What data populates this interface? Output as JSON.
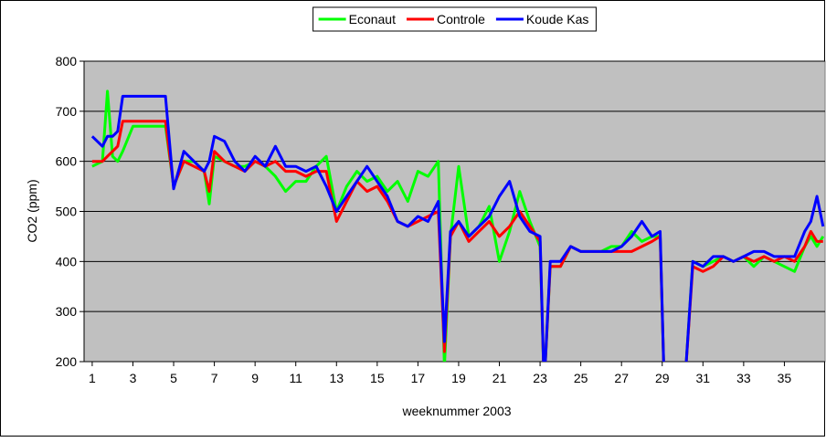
{
  "chart_data": {
    "type": "line",
    "xlabel": "weeknummer 2003",
    "ylabel": "CO2 (ppm)",
    "x": [
      1,
      1.5,
      1.75,
      2,
      2.25,
      2.5,
      3,
      4,
      4.6,
      5,
      5.5,
      6,
      6.5,
      6.75,
      7,
      7.5,
      8,
      8.5,
      9,
      9.5,
      10,
      10.5,
      11,
      11.5,
      12,
      12.5,
      13,
      13.5,
      14,
      14.5,
      15,
      15.5,
      16,
      16.5,
      17,
      17.5,
      18,
      18.3,
      18.6,
      19,
      19.5,
      20,
      20.5,
      21,
      21.5,
      22,
      22.5,
      23,
      23.2,
      23.5,
      24,
      24.5,
      25,
      25.5,
      26,
      26.5,
      27,
      27.5,
      28,
      28.5,
      28.9,
      29.1,
      30,
      30.1,
      30.5,
      31,
      31.5,
      32,
      32.5,
      33,
      33.5,
      34,
      34.5,
      35,
      35.5,
      36,
      36.3,
      36.6,
      36.9
    ],
    "series": [
      {
        "name": "Econaut",
        "color": "#00ff00",
        "values": [
          590,
          600,
          740,
          610,
          600,
          620,
          670,
          670,
          670,
          550,
          600,
          600,
          580,
          515,
          610,
          600,
          590,
          590,
          600,
          590,
          570,
          540,
          560,
          560,
          590,
          610,
          500,
          550,
          580,
          560,
          570,
          540,
          560,
          520,
          580,
          570,
          600,
          190,
          450,
          590,
          450,
          470,
          510,
          400,
          460,
          540,
          480,
          430,
          150,
          390,
          390,
          430,
          420,
          420,
          420,
          430,
          430,
          460,
          440,
          450,
          450,
          150,
          null,
          150,
          400,
          390,
          400,
          410,
          400,
          410,
          390,
          410,
          400,
          390,
          380,
          430,
          450,
          430,
          450
        ]
      },
      {
        "name": "Controle",
        "color": "#ff0000",
        "values": [
          600,
          600,
          610,
          620,
          630,
          680,
          680,
          680,
          680,
          550,
          600,
          590,
          580,
          540,
          620,
          600,
          590,
          580,
          600,
          590,
          600,
          580,
          580,
          570,
          580,
          580,
          480,
          520,
          560,
          540,
          550,
          520,
          480,
          470,
          480,
          490,
          500,
          220,
          450,
          480,
          440,
          460,
          480,
          450,
          470,
          500,
          470,
          440,
          150,
          390,
          390,
          430,
          420,
          420,
          420,
          420,
          420,
          420,
          430,
          440,
          450,
          150,
          null,
          150,
          390,
          380,
          390,
          410,
          400,
          410,
          400,
          410,
          400,
          410,
          400,
          430,
          460,
          440,
          440
        ]
      },
      {
        "name": "Koude Kas",
        "color": "#0000ff",
        "values": [
          650,
          630,
          650,
          650,
          660,
          730,
          730,
          730,
          730,
          545,
          620,
          600,
          580,
          600,
          650,
          640,
          600,
          580,
          610,
          590,
          630,
          590,
          590,
          580,
          590,
          550,
          500,
          530,
          560,
          590,
          560,
          530,
          480,
          470,
          490,
          480,
          520,
          240,
          460,
          480,
          450,
          470,
          490,
          530,
          560,
          490,
          460,
          450,
          150,
          400,
          400,
          430,
          420,
          420,
          420,
          420,
          430,
          450,
          480,
          450,
          460,
          150,
          null,
          150,
          400,
          390,
          410,
          410,
          400,
          410,
          420,
          420,
          410,
          410,
          410,
          460,
          480,
          530,
          470
        ]
      }
    ],
    "xlim": [
      0.6,
      37
    ],
    "xticks": [
      1,
      3,
      5,
      7,
      9,
      11,
      13,
      15,
      17,
      19,
      21,
      23,
      25,
      27,
      29,
      31,
      33,
      35
    ],
    "ylim": [
      200,
      800
    ],
    "yticks": [
      200,
      300,
      400,
      500,
      600,
      700,
      800
    ],
    "grid": true,
    "legend": "top"
  }
}
